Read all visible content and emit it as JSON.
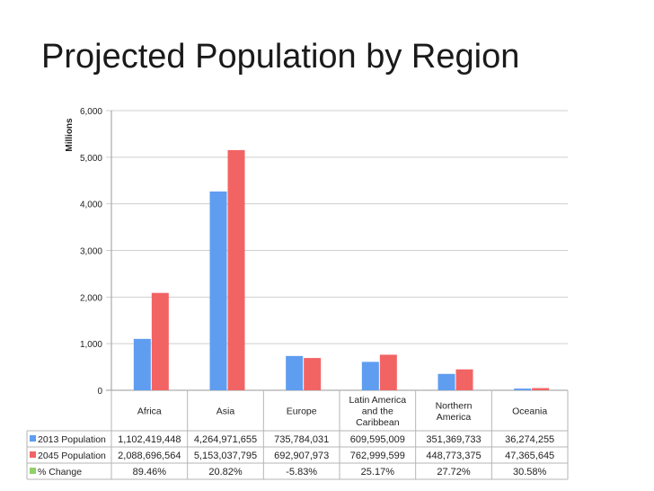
{
  "page": {
    "title": "Projected Population by Region"
  },
  "colors": {
    "s2013": "#5f9df0",
    "s2045": "#f26464",
    "change": "#8fd16a",
    "grid": "#cfcfcf",
    "table_border": "#b5b5b5"
  },
  "chart_data": {
    "type": "bar",
    "title": "Projected Population by Region",
    "ylabel": "Millions",
    "xlabel": "",
    "ylim": [
      0,
      6000
    ],
    "yticks": [
      0,
      1000,
      2000,
      3000,
      4000,
      5000,
      6000
    ],
    "ytick_labels": [
      "0",
      "1,000",
      "2,000",
      "3,000",
      "4,000",
      "5,000",
      "6,000"
    ],
    "grid": true,
    "categories": [
      [
        "Africa"
      ],
      [
        "Asia"
      ],
      [
        "Europe"
      ],
      [
        "Latin America",
        "and the",
        "Caribbean"
      ],
      [
        "Northern",
        "America"
      ],
      [
        "Oceania"
      ]
    ],
    "series": [
      {
        "name": "2013 Population",
        "color": "#5f9df0",
        "values": [
          1102.419448,
          4264.971655,
          735.784031,
          609.595009,
          351.369733,
          36.274255
        ],
        "labels": [
          "1,102,419,448",
          "4,264,971,655",
          "735,784,031",
          "609,595,009",
          "351,369,733",
          "36,274,255"
        ]
      },
      {
        "name": "2045 Population",
        "color": "#f26464",
        "values": [
          2088.696564,
          5153.037795,
          692.907973,
          762.999599,
          448.773375,
          47.365645
        ],
        "labels": [
          "2,088,696,564",
          "5,153,037,795",
          "692,907,973",
          "762,999,599",
          "448,773,375",
          "47,365,645"
        ]
      }
    ],
    "change": {
      "name": "% Change",
      "color": "#8fd16a",
      "labels": [
        "89.46%",
        "20.82%",
        "-5.83%",
        "25.17%",
        "27.72%",
        "30.58%"
      ]
    }
  }
}
